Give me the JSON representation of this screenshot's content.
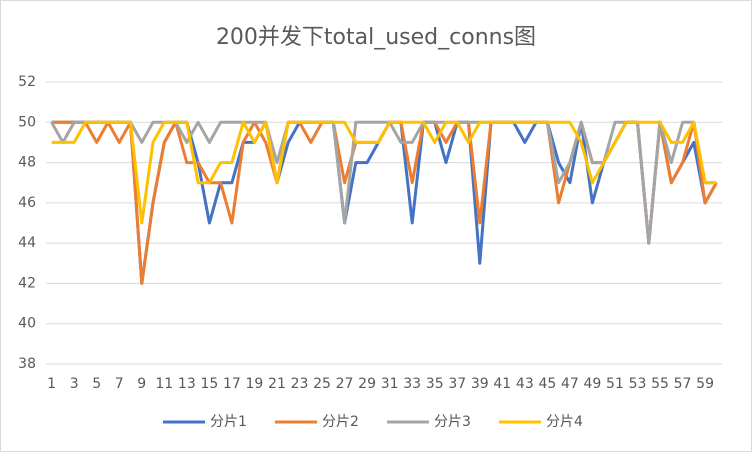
{
  "chart_data": {
    "type": "line",
    "title": "200并发下total_used_conns图",
    "categories": [
      1,
      null,
      3,
      null,
      5,
      null,
      7,
      null,
      9,
      null,
      11,
      null,
      13,
      null,
      15,
      null,
      17,
      null,
      19,
      null,
      21,
      null,
      23,
      null,
      25,
      null,
      27,
      null,
      29,
      null,
      31,
      null,
      33,
      null,
      35,
      null,
      37,
      null,
      39,
      null,
      41,
      null,
      43,
      null,
      45,
      null,
      47,
      null,
      49,
      null,
      51,
      null,
      53,
      null,
      55,
      null,
      57,
      null,
      59,
      null
    ],
    "ylim": [
      38,
      52
    ],
    "yticks": [
      38,
      40,
      42,
      44,
      46,
      48,
      50,
      52
    ],
    "grid": true,
    "legend": "bottom",
    "series": [
      {
        "name": "分片1",
        "color": "#4472c4",
        "values": [
          50,
          50,
          50,
          50,
          50,
          50,
          50,
          50,
          42,
          46,
          49,
          50,
          50,
          48,
          45,
          47,
          47,
          49,
          49,
          50,
          47,
          49,
          50,
          50,
          50,
          50,
          45,
          48,
          48,
          49,
          50,
          50,
          45,
          50,
          50,
          48,
          50,
          50,
          43,
          50,
          50,
          50,
          49,
          50,
          50,
          48,
          47,
          50,
          46,
          48,
          49,
          50,
          50,
          44,
          50,
          47,
          48,
          49,
          46,
          47
        ]
      },
      {
        "name": "分片2",
        "color": "#ed7d31",
        "values": [
          50,
          50,
          50,
          50,
          49,
          50,
          49,
          50,
          42,
          46,
          49,
          50,
          48,
          48,
          47,
          47,
          45,
          49,
          50,
          49,
          47,
          50,
          50,
          49,
          50,
          50,
          47,
          49,
          49,
          49,
          50,
          50,
          47,
          50,
          50,
          49,
          50,
          50,
          45,
          50,
          50,
          50,
          50,
          50,
          50,
          46,
          48,
          50,
          48,
          48,
          49,
          50,
          50,
          44,
          50,
          47,
          48,
          50,
          46,
          47
        ]
      },
      {
        "name": "分片3",
        "color": "#a5a5a5",
        "values": [
          50,
          49,
          50,
          50,
          50,
          50,
          50,
          50,
          49,
          50,
          50,
          50,
          49,
          50,
          49,
          50,
          50,
          50,
          50,
          50,
          48,
          50,
          50,
          50,
          50,
          50,
          45,
          50,
          50,
          50,
          50,
          49,
          49,
          50,
          50,
          50,
          50,
          50,
          50,
          50,
          50,
          50,
          50,
          50,
          50,
          47,
          48,
          50,
          48,
          48,
          50,
          50,
          50,
          44,
          50,
          48,
          50,
          50,
          47,
          47
        ]
      },
      {
        "name": "分片4",
        "color": "#ffc000",
        "values": [
          49,
          49,
          49,
          50,
          50,
          50,
          50,
          50,
          45,
          49,
          50,
          50,
          50,
          47,
          47,
          48,
          48,
          50,
          49,
          50,
          47,
          50,
          50,
          50,
          50,
          50,
          50,
          49,
          49,
          49,
          50,
          50,
          50,
          50,
          49,
          50,
          50,
          49,
          50,
          50,
          50,
          50,
          50,
          50,
          50,
          50,
          50,
          49,
          47,
          48,
          49,
          50,
          50,
          50,
          50,
          49,
          49,
          50,
          47,
          47
        ]
      }
    ]
  }
}
